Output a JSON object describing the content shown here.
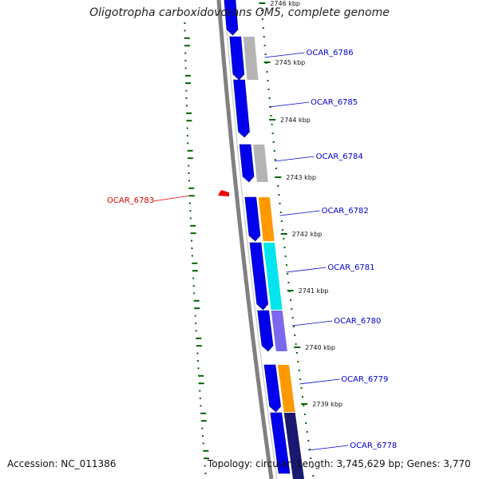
{
  "title": "Oligotropha carboxidovorans OM5, complete genome",
  "footer": {
    "accession": "Accession: NC_011386",
    "summary": "Topology: circular; Length: 3,745,629 bp; Genes: 3,770"
  },
  "colors": {
    "forward_cds": "#0000ee",
    "category_gray": "#b4b4b4",
    "category_orange": "#ff9900",
    "category_cyan": "#00e5ee",
    "category_slate": "#7b68ee",
    "category_navy": "#191970",
    "backbone": "#808080",
    "gc_skew": "#006400",
    "label_forward": "#0000cc",
    "label_reverse": "#dd0000"
  },
  "kbp_marks": [
    "2746 kbp",
    "2745 kbp",
    "2744 kbp",
    "2743 kbp",
    "2742 kbp",
    "2741 kbp",
    "2740 kbp",
    "2739 kbp"
  ],
  "genes": [
    {
      "label": "OCAR_6786",
      "strand": "forward",
      "category": "gray"
    },
    {
      "label": "OCAR_6785",
      "strand": "forward",
      "category": "none"
    },
    {
      "label": "OCAR_6784",
      "strand": "forward",
      "category": "gray"
    },
    {
      "label": "OCAR_6783",
      "strand": "reverse",
      "category": "none"
    },
    {
      "label": "OCAR_6782",
      "strand": "forward",
      "category": "orange"
    },
    {
      "label": "OCAR_6781",
      "strand": "forward",
      "category": "cyan"
    },
    {
      "label": "OCAR_6780",
      "strand": "forward",
      "category": "slate"
    },
    {
      "label": "OCAR_6779",
      "strand": "forward",
      "category": "orange"
    },
    {
      "label": "OCAR_6778",
      "strand": "forward",
      "category": "navy"
    }
  ]
}
